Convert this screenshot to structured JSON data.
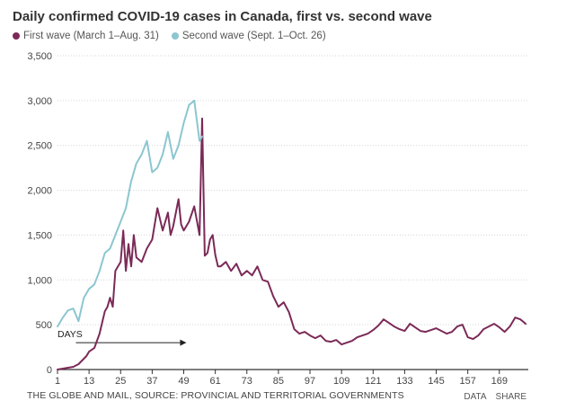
{
  "title": "Daily confirmed COVID-19 cases in Canada, first vs. second wave",
  "footer": {
    "source": "THE GLOBE AND MAIL, SOURCE: PROVINCIAL AND TERRITORIAL GOVERNMENTS",
    "data_link": "DATA",
    "share_link": "SHARE"
  },
  "chart_data": {
    "type": "line",
    "title": "Daily confirmed COVID-19 cases in Canada, first vs. second wave",
    "xlabel": "",
    "ylabel": "",
    "xlim": [
      1,
      180
    ],
    "ylim": [
      0,
      3500
    ],
    "x_ticks": [
      1,
      13,
      25,
      37,
      49,
      61,
      73,
      85,
      97,
      109,
      121,
      133,
      145,
      157,
      169
    ],
    "y_ticks": [
      0,
      500,
      1000,
      1500,
      2000,
      2500,
      3000,
      3500
    ],
    "y_tick_labels": [
      "0",
      "500",
      "1,000",
      "1,500",
      "2,000",
      "2,500",
      "3,000",
      "3,500"
    ],
    "grid": "horizontal",
    "legend": "top-left",
    "annotation": {
      "text": "DAYS",
      "arrow_from_day": 8,
      "arrow_to_day": 50
    },
    "series": [
      {
        "name": "First wave (March 1–Aug. 31)",
        "color": "#7b2a57",
        "x": [
          1,
          3,
          5,
          7,
          9,
          11,
          12,
          13,
          15,
          17,
          19,
          20,
          21,
          22,
          23,
          25,
          26,
          27,
          28,
          29,
          30,
          31,
          33,
          35,
          37,
          39,
          41,
          43,
          44,
          45,
          47,
          48,
          49,
          51,
          53,
          55,
          56,
          57,
          58,
          59,
          60,
          61,
          62,
          63,
          65,
          67,
          69,
          71,
          73,
          75,
          77,
          79,
          81,
          83,
          85,
          87,
          89,
          91,
          93,
          95,
          97,
          99,
          101,
          103,
          105,
          107,
          109,
          111,
          113,
          115,
          117,
          119,
          121,
          123,
          125,
          127,
          129,
          131,
          133,
          135,
          137,
          139,
          141,
          143,
          145,
          147,
          149,
          151,
          153,
          155,
          157,
          159,
          161,
          163,
          165,
          167,
          169,
          171,
          173,
          175,
          177,
          179
        ],
        "y": [
          0,
          10,
          20,
          30,
          60,
          120,
          150,
          200,
          240,
          400,
          650,
          700,
          800,
          700,
          1100,
          1200,
          1550,
          1100,
          1400,
          1150,
          1500,
          1250,
          1200,
          1350,
          1450,
          1800,
          1550,
          1750,
          1500,
          1600,
          1900,
          1620,
          1550,
          1650,
          1820,
          1500,
          2800,
          1270,
          1300,
          1450,
          1500,
          1280,
          1150,
          1150,
          1200,
          1100,
          1180,
          1050,
          1100,
          1050,
          1150,
          1000,
          980,
          820,
          700,
          750,
          640,
          450,
          400,
          420,
          380,
          350,
          380,
          320,
          310,
          330,
          280,
          300,
          320,
          360,
          380,
          400,
          440,
          490,
          560,
          520,
          480,
          450,
          430,
          510,
          470,
          430,
          420,
          440,
          460,
          430,
          400,
          420,
          480,
          500,
          360,
          340,
          380,
          450,
          480,
          510,
          470,
          420,
          480,
          580,
          560,
          510
        ]
      },
      {
        "name": "Second wave (Sept. 1–Oct. 26)",
        "color": "#8cc6d0",
        "x": [
          1,
          3,
          5,
          7,
          9,
          11,
          13,
          15,
          17,
          19,
          21,
          23,
          25,
          27,
          29,
          31,
          33,
          35,
          37,
          39,
          41,
          43,
          45,
          47,
          49,
          51,
          53,
          55,
          56
        ],
        "y": [
          480,
          580,
          660,
          680,
          540,
          800,
          900,
          950,
          1100,
          1300,
          1350,
          1500,
          1650,
          1800,
          2100,
          2300,
          2400,
          2550,
          2200,
          2250,
          2400,
          2650,
          2350,
          2500,
          2750,
          2950,
          3000,
          2550,
          2600
        ]
      }
    ]
  }
}
